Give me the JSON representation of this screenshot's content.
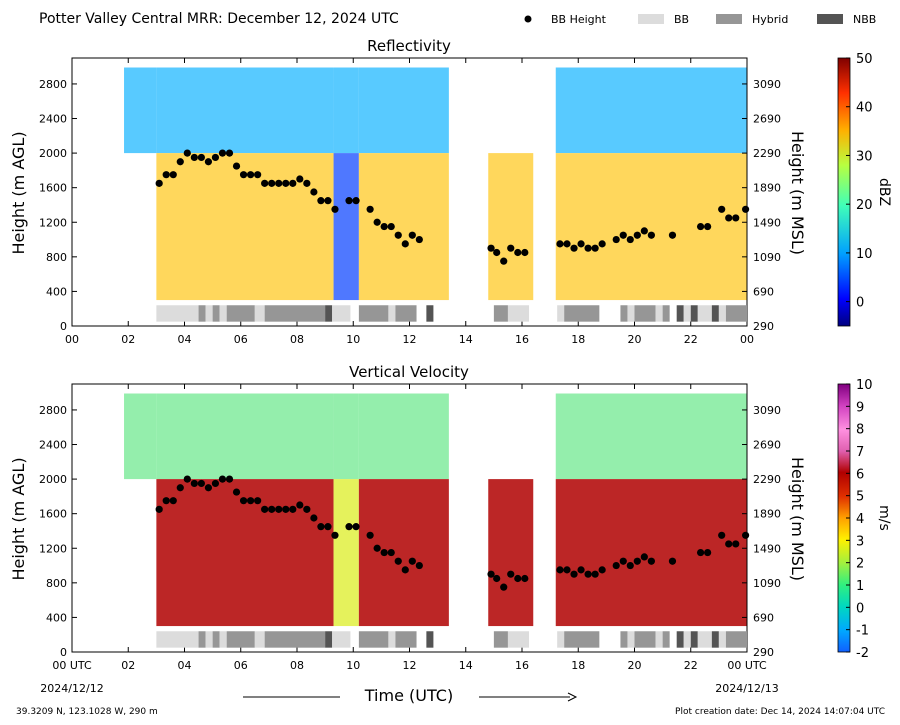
{
  "header": {
    "title": "Potter Valley Central MRR:  December 12, 2024 UTC",
    "legend": [
      {
        "name": "BB Height",
        "kind": "dot",
        "color": "#000000"
      },
      {
        "name": "BB",
        "kind": "rect",
        "color": "#dcdcdc"
      },
      {
        "name": "Hybrid",
        "kind": "rect",
        "color": "#969696"
      },
      {
        "name": "NBB",
        "kind": "rect",
        "color": "#545454"
      }
    ]
  },
  "axes": {
    "left_ylabel": "Height (m AGL)",
    "right_ylabel": "Height (m MSL)",
    "xlabel": "Time (UTC)",
    "left_ticks": [
      0,
      400,
      800,
      1200,
      1600,
      2000,
      2400,
      2800
    ],
    "right_ticks": [
      290,
      690,
      1090,
      1490,
      1890,
      2290,
      2690,
      3090
    ],
    "x_ticks_top": [
      "00",
      "02",
      "04",
      "06",
      "08",
      "10",
      "12",
      "14",
      "16",
      "18",
      "20",
      "22",
      "00"
    ],
    "x_ticks_bottom": [
      "00 UTC",
      "02",
      "04",
      "06",
      "08",
      "10",
      "12",
      "14",
      "16",
      "18",
      "20",
      "22",
      "00 UTC"
    ],
    "start_date": "2024/12/12",
    "end_date": "2024/12/13"
  },
  "footer": {
    "location": "39.3209 N, 123.1028 W, 290 m",
    "created": "Plot creation date: Dec 14, 2024 14:07:04 UTC"
  },
  "colors": {
    "bb": "#dcdcdc",
    "hybrid": "#969696",
    "nbb": "#545454",
    "bb_dot": "#000000"
  },
  "chart_data": [
    {
      "type": "heatmap",
      "title": "Reflectivity",
      "ylabel": "Height (m AGL)",
      "ylabel_right": "Height (m MSL)",
      "colorbar_label": "dBZ",
      "colorbar_ticks": [
        0,
        10,
        20,
        30,
        40,
        50
      ],
      "colorbar_range": [
        -5,
        50
      ],
      "xlim": [
        0,
        24
      ],
      "ylim": [
        0,
        3100
      ],
      "bb_height_series": {
        "name": "BB Height",
        "x": [
          3.1,
          3.35,
          3.6,
          3.85,
          4.1,
          4.35,
          4.6,
          4.85,
          5.1,
          5.35,
          5.6,
          5.85,
          6.1,
          6.35,
          6.6,
          6.85,
          7.1,
          7.35,
          7.6,
          7.85,
          8.1,
          8.35,
          8.6,
          8.85,
          9.1,
          9.35,
          9.85,
          10.1,
          10.6,
          10.85,
          11.1,
          11.35,
          11.6,
          11.85,
          12.1,
          12.35,
          14.9,
          15.1,
          15.35,
          15.6,
          15.85,
          16.1,
          17.35,
          17.6,
          17.85,
          18.1,
          18.35,
          18.6,
          18.85,
          19.35,
          19.6,
          19.85,
          20.1,
          20.35,
          20.6,
          21.35,
          22.35,
          22.6,
          23.1,
          23.35,
          23.6,
          23.95
        ],
        "y": [
          1650,
          1750,
          1750,
          1900,
          2000,
          1950,
          1950,
          1900,
          1950,
          2000,
          2000,
          1850,
          1750,
          1750,
          1750,
          1650,
          1650,
          1650,
          1650,
          1650,
          1700,
          1650,
          1550,
          1450,
          1450,
          1350,
          1450,
          1450,
          1350,
          1200,
          1150,
          1150,
          1050,
          950,
          1050,
          1000,
          900,
          850,
          750,
          900,
          850,
          850,
          950,
          950,
          900,
          950,
          900,
          900,
          950,
          1000,
          1050,
          1000,
          1050,
          1100,
          1050,
          1050,
          1150,
          1150,
          1350,
          1250,
          1250,
          1350
        ]
      },
      "bb_type_strip": [
        {
          "start": 3.0,
          "end": 4.5,
          "type": "BB"
        },
        {
          "start": 4.5,
          "end": 4.75,
          "type": "Hybrid"
        },
        {
          "start": 4.75,
          "end": 5.0,
          "type": "BB"
        },
        {
          "start": 5.0,
          "end": 5.25,
          "type": "Hybrid"
        },
        {
          "start": 5.25,
          "end": 5.5,
          "type": "BB"
        },
        {
          "start": 5.5,
          "end": 6.5,
          "type": "Hybrid"
        },
        {
          "start": 6.5,
          "end": 6.85,
          "type": "BB"
        },
        {
          "start": 6.85,
          "end": 9.0,
          "type": "Hybrid"
        },
        {
          "start": 9.0,
          "end": 9.25,
          "type": "NBB"
        },
        {
          "start": 9.25,
          "end": 9.9,
          "type": "BB"
        },
        {
          "start": 10.2,
          "end": 11.25,
          "type": "Hybrid"
        },
        {
          "start": 11.25,
          "end": 11.5,
          "type": "BB"
        },
        {
          "start": 11.5,
          "end": 12.25,
          "type": "Hybrid"
        },
        {
          "start": 12.6,
          "end": 12.85,
          "type": "NBB"
        },
        {
          "start": 15.0,
          "end": 15.5,
          "type": "Hybrid"
        },
        {
          "start": 15.5,
          "end": 16.25,
          "type": "BB"
        },
        {
          "start": 17.25,
          "end": 17.5,
          "type": "BB"
        },
        {
          "start": 17.5,
          "end": 18.75,
          "type": "Hybrid"
        },
        {
          "start": 19.5,
          "end": 19.75,
          "type": "Hybrid"
        },
        {
          "start": 19.75,
          "end": 20.0,
          "type": "BB"
        },
        {
          "start": 20.0,
          "end": 20.75,
          "type": "Hybrid"
        },
        {
          "start": 20.75,
          "end": 21.0,
          "type": "BB"
        },
        {
          "start": 21.0,
          "end": 21.25,
          "type": "Hybrid"
        },
        {
          "start": 21.5,
          "end": 21.75,
          "type": "NBB"
        },
        {
          "start": 21.75,
          "end": 22.0,
          "type": "BB"
        },
        {
          "start": 22.0,
          "end": 22.25,
          "type": "NBB"
        },
        {
          "start": 22.25,
          "end": 22.75,
          "type": "BB"
        },
        {
          "start": 22.75,
          "end": 23.0,
          "type": "NBB"
        },
        {
          "start": 23.0,
          "end": 23.25,
          "type": "BB"
        },
        {
          "start": 23.25,
          "end": 24.0,
          "type": "Hybrid"
        }
      ]
    },
    {
      "type": "heatmap",
      "title": "Vertical Velocity",
      "ylabel": "Height (m AGL)",
      "ylabel_right": "Height (m MSL)",
      "colorbar_label": "m/s",
      "colorbar_ticks": [
        -2,
        -1,
        0,
        1,
        2,
        3,
        4,
        5,
        6,
        7,
        8,
        9,
        10
      ],
      "colorbar_range": [
        -2,
        10
      ],
      "xlim": [
        0,
        24
      ],
      "ylim": [
        0,
        3100
      ],
      "bb_height_series": {
        "name": "BB Height",
        "x": [
          3.1,
          3.35,
          3.6,
          3.85,
          4.1,
          4.35,
          4.6,
          4.85,
          5.1,
          5.35,
          5.6,
          5.85,
          6.1,
          6.35,
          6.6,
          6.85,
          7.1,
          7.35,
          7.6,
          7.85,
          8.1,
          8.35,
          8.6,
          8.85,
          9.1,
          9.35,
          9.85,
          10.1,
          10.6,
          10.85,
          11.1,
          11.35,
          11.6,
          11.85,
          12.1,
          12.35,
          14.9,
          15.1,
          15.35,
          15.6,
          15.85,
          16.1,
          17.35,
          17.6,
          17.85,
          18.1,
          18.35,
          18.6,
          18.85,
          19.35,
          19.6,
          19.85,
          20.1,
          20.35,
          20.6,
          21.35,
          22.35,
          22.6,
          23.1,
          23.35,
          23.6,
          23.95
        ],
        "y": [
          1650,
          1750,
          1750,
          1900,
          2000,
          1950,
          1950,
          1900,
          1950,
          2000,
          2000,
          1850,
          1750,
          1750,
          1750,
          1650,
          1650,
          1650,
          1650,
          1650,
          1700,
          1650,
          1550,
          1450,
          1450,
          1350,
          1450,
          1450,
          1350,
          1200,
          1150,
          1150,
          1050,
          950,
          1050,
          1000,
          900,
          850,
          750,
          900,
          850,
          850,
          950,
          950,
          900,
          950,
          900,
          900,
          950,
          1000,
          1050,
          1000,
          1050,
          1100,
          1050,
          1050,
          1150,
          1150,
          1350,
          1250,
          1250,
          1350
        ]
      },
      "bb_type_strip": "same as Reflectivity"
    }
  ]
}
